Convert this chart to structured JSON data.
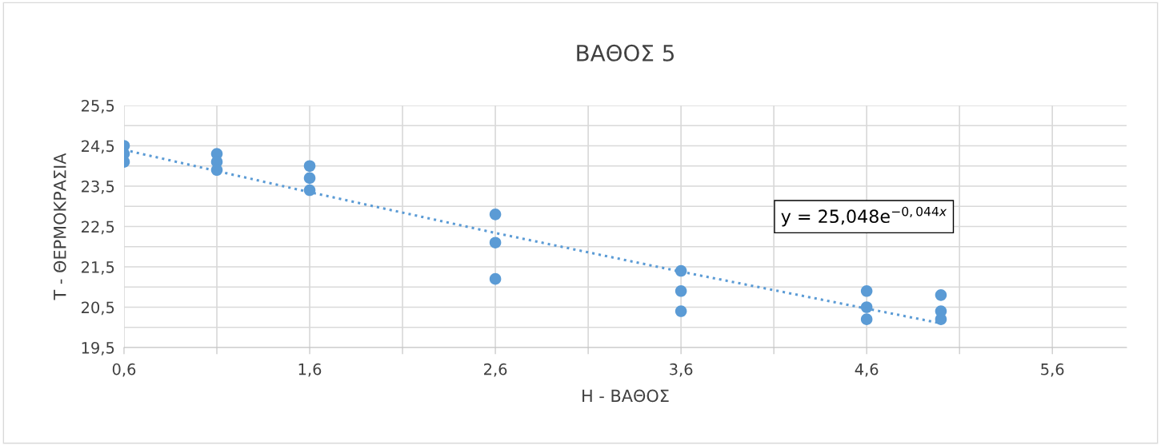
{
  "chart_data": {
    "type": "scatter",
    "title": "ΒΑΘΟΣ 5",
    "xlabel": "Η - ΒΑΘΟΣ",
    "ylabel": "Τ - ΘΕΡΜΟΚΡΑΣΙΑ",
    "series": [
      {
        "color": "#5b9bd5",
        "marker": "circle",
        "x": [
          0.6,
          0.6,
          0.6,
          1.1,
          1.1,
          1.1,
          1.6,
          1.6,
          1.6,
          2.6,
          2.6,
          2.6,
          3.6,
          3.6,
          3.6,
          4.6,
          4.6,
          4.6,
          5.0,
          5.0,
          5.0
        ],
        "values": [
          24.5,
          24.3,
          24.1,
          24.3,
          24.1,
          23.9,
          24.0,
          23.7,
          23.4,
          22.8,
          22.1,
          21.2,
          21.4,
          20.9,
          20.4,
          20.9,
          20.5,
          20.2,
          20.8,
          20.4,
          20.2
        ]
      },
      {
        "type": "line",
        "color": "#5b9bd5",
        "line_style": "dotted",
        "x": [
          0.6,
          1.6,
          2.6,
          3.6,
          5.0
        ],
        "values": [
          24.4,
          23.35,
          22.34,
          21.38,
          20.1
        ]
      }
    ],
    "annotations": [
      "y = 25,048e$^{−0,044x}$"
    ],
    "xlim": [
      0.6,
      6.0
    ],
    "xticks": [
      {
        "value": 0.6,
        "label": "0,6"
      },
      {
        "value": 1.1,
        "label": null
      },
      {
        "value": 1.6,
        "label": "1,6"
      },
      {
        "value": 2.1,
        "label": null
      },
      {
        "value": 2.6,
        "label": "2,6"
      },
      {
        "value": 3.1,
        "label": null
      },
      {
        "value": 3.6,
        "label": "3,6"
      },
      {
        "value": 4.1,
        "label": null
      },
      {
        "value": 4.6,
        "label": "4,6"
      },
      {
        "value": 5.1,
        "label": null
      },
      {
        "value": 5.6,
        "label": "5,6"
      }
    ],
    "ylim": [
      19.5,
      25.5
    ],
    "yticks": [
      {
        "value": 19.5,
        "label": "19,5"
      },
      {
        "value": 20,
        "label": null
      },
      {
        "value": 20.5,
        "label": "20,5"
      },
      {
        "value": 21,
        "label": null
      },
      {
        "value": 21.5,
        "label": "21,5"
      },
      {
        "value": 22,
        "label": null
      },
      {
        "value": 22.5,
        "label": "22,5"
      },
      {
        "value": 23,
        "label": null
      },
      {
        "value": 23.5,
        "label": "23,5"
      },
      {
        "value": 24,
        "label": null
      },
      {
        "value": 24.5,
        "label": "24,5"
      },
      {
        "value": 25,
        "label": null
      },
      {
        "value": 25.5,
        "label": "25,5"
      }
    ],
    "grid": true,
    "legend": false
  }
}
